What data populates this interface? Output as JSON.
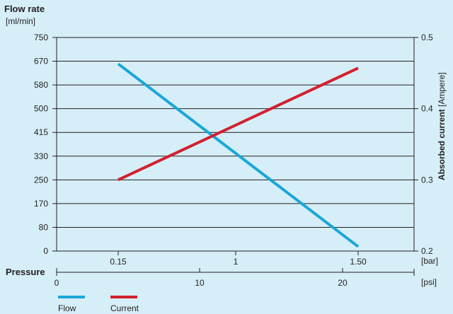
{
  "chart_data": {
    "type": "line",
    "title": "Flow rate",
    "left_axis": {
      "label": "Flow rate",
      "unit": "[ml/min]",
      "ticks": [
        "0",
        "80",
        "170",
        "250",
        "330",
        "415",
        "500",
        "580",
        "670",
        "750"
      ]
    },
    "right_axis": {
      "label_bold": "Absorbed current",
      "label_unit": "[Ampere]",
      "ticks": [
        "0.2",
        "0.3",
        "0.4",
        "0.5"
      ],
      "range": [
        0.2,
        0.5
      ]
    },
    "x_axis": {
      "label": "Pressure",
      "bar_ticks": [
        "0.15",
        "1",
        "1.50"
      ],
      "bar_unit": "[bar]",
      "psi_ticks": [
        "0",
        "10",
        "20"
      ],
      "psi_unit": "[psi]"
    },
    "grid": true,
    "legend_position": "bottom-left",
    "series": [
      {
        "name": "Flow",
        "axis": "left",
        "color": "#1aa7d8",
        "points": [
          {
            "x": "0.15",
            "y": 660
          },
          {
            "x": "1.50",
            "y": 15
          }
        ]
      },
      {
        "name": "Current",
        "axis": "right",
        "color": "#d2202f",
        "points": [
          {
            "x": "0.15",
            "y": 0.3
          },
          {
            "x": "1.50",
            "y": 0.457
          }
        ]
      }
    ]
  }
}
